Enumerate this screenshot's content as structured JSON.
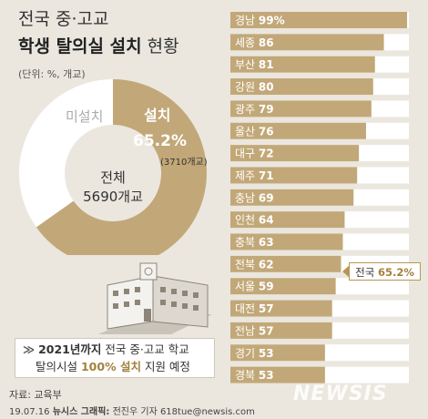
{
  "title": {
    "line1": "전국 중·고교",
    "line2_bold": "학생 탈의실 설치",
    "line2_rest": " 현황"
  },
  "unit": "(단위: %, 개교)",
  "donut": {
    "installed_label": "설치",
    "installed_pct": "65.2%",
    "installed_count": "(3710개교)",
    "not_installed_label": "미설치",
    "center_label": "전체",
    "center_value": "5690개교",
    "installed_fraction": 0.652
  },
  "note": {
    "arrow": "≫",
    "bold": "2021년까지",
    "text1": " 전국 중·고교 학교",
    "text2a": "탈의시설 ",
    "accent": "100% 설치",
    "text2b": " 지원 예정"
  },
  "callout": {
    "label": "전국 ",
    "value": "65.2%"
  },
  "source": "자료: 교육부",
  "credit": {
    "date": "19.07.16 ",
    "bold": "뉴시스 그래픽:",
    "rest": " 전진우 기자 618tue@newsis.com"
  },
  "logo": "NEWSIS",
  "colors": {
    "bar": "#c2a878",
    "bar_bg": "#ffffff",
    "accent": "#a4813c",
    "donut_empty": "#ffffff"
  },
  "chart_data": [
    {
      "type": "pie",
      "labels": [
        "설치",
        "미설치"
      ],
      "values": [
        65.2,
        34.8
      ]
    },
    {
      "type": "bar",
      "orientation": "horizontal",
      "categories": [
        "경남",
        "세종",
        "부산",
        "강원",
        "광주",
        "울산",
        "대구",
        "제주",
        "충남",
        "인천",
        "충북",
        "전북",
        "서울",
        "대전",
        "전남",
        "경기",
        "경북"
      ],
      "values": [
        99,
        86,
        81,
        80,
        79,
        76,
        72,
        71,
        69,
        64,
        63,
        62,
        59,
        57,
        57,
        53,
        53
      ],
      "xlim": [
        0,
        100
      ],
      "reference": {
        "label": "전국",
        "value": 65.2
      }
    }
  ]
}
